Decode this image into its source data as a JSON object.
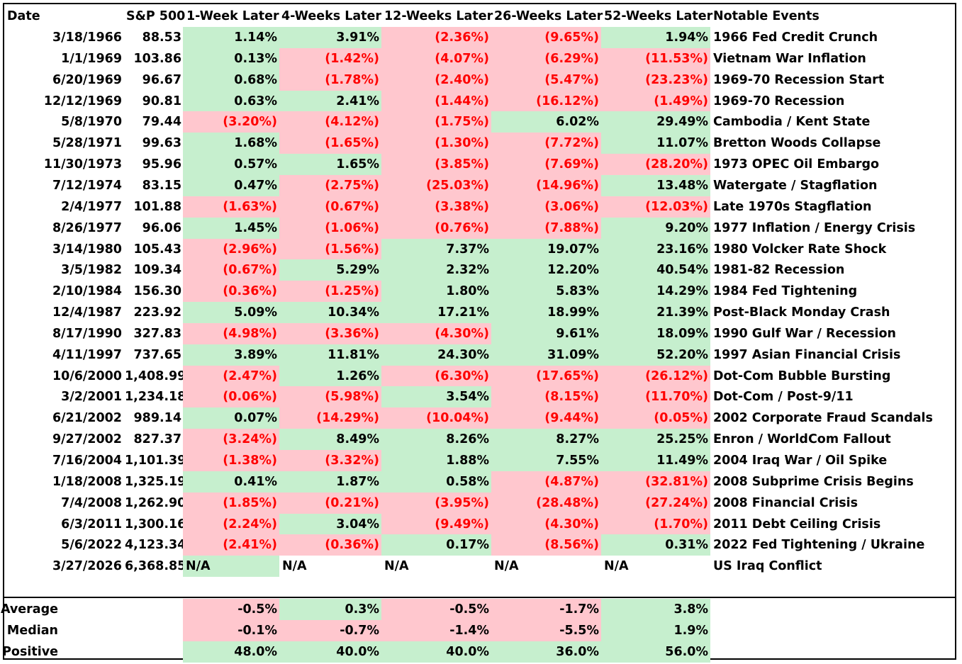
{
  "headers": {
    "date": "Date",
    "sp500": "S&P 500",
    "w1": "1-Week Later",
    "w4": "4-Weeks Later",
    "w12": "12-Weeks Later",
    "w26": "26-Weeks Later",
    "w52": "52-Weeks Later",
    "events": "Notable Events"
  },
  "rows": [
    {
      "date": "3/18/1966",
      "sp": "88.53",
      "w1": "1.14%",
      "w4": "3.91%",
      "w12": "(2.36%)",
      "w26": "(9.65%)",
      "w52": "1.94%",
      "ev": "1966 Fed Credit Crunch"
    },
    {
      "date": "1/1/1969",
      "sp": "103.86",
      "w1": "0.13%",
      "w4": "(1.42%)",
      "w12": "(4.07%)",
      "w26": "(6.29%)",
      "w52": "(11.53%)",
      "ev": "Vietnam War Inflation"
    },
    {
      "date": "6/20/1969",
      "sp": "96.67",
      "w1": "0.68%",
      "w4": "(1.78%)",
      "w12": "(2.40%)",
      "w26": "(5.47%)",
      "w52": "(23.23%)",
      "ev": "1969-70 Recession Start"
    },
    {
      "date": "12/12/1969",
      "sp": "90.81",
      "w1": "0.63%",
      "w4": "2.41%",
      "w12": "(1.44%)",
      "w26": "(16.12%)",
      "w52": "(1.49%)",
      "ev": "1969-70 Recession"
    },
    {
      "date": "5/8/1970",
      "sp": "79.44",
      "w1": "(3.20%)",
      "w4": "(4.12%)",
      "w12": "(1.75%)",
      "w26": "6.02%",
      "w52": "29.49%",
      "ev": "Cambodia / Kent State"
    },
    {
      "date": "5/28/1971",
      "sp": "99.63",
      "w1": "1.68%",
      "w4": "(1.65%)",
      "w12": "(1.30%)",
      "w26": "(7.72%)",
      "w52": "11.07%",
      "ev": "Bretton Woods Collapse"
    },
    {
      "date": "11/30/1973",
      "sp": "95.96",
      "w1": "0.57%",
      "w4": "1.65%",
      "w12": "(3.85%)",
      "w26": "(7.69%)",
      "w52": "(28.20%)",
      "ev": "1973 OPEC Oil Embargo"
    },
    {
      "date": "7/12/1974",
      "sp": "83.15",
      "w1": "0.47%",
      "w4": "(2.75%)",
      "w12": "(25.03%)",
      "w26": "(14.96%)",
      "w52": "13.48%",
      "ev": "Watergate / Stagflation"
    },
    {
      "date": "2/4/1977",
      "sp": "101.88",
      "w1": "(1.63%)",
      "w4": "(0.67%)",
      "w12": "(3.38%)",
      "w26": "(3.06%)",
      "w52": "(12.03%)",
      "ev": "Late 1970s Stagflation"
    },
    {
      "date": "8/26/1977",
      "sp": "96.06",
      "w1": "1.45%",
      "w4": "(1.06%)",
      "w12": "(0.76%)",
      "w26": "(7.88%)",
      "w52": "9.20%",
      "ev": "1977 Inflation / Energy Crisis"
    },
    {
      "date": "3/14/1980",
      "sp": "105.43",
      "w1": "(2.96%)",
      "w4": "(1.56%)",
      "w12": "7.37%",
      "w26": "19.07%",
      "w52": "23.16%",
      "ev": "1980 Volcker Rate Shock"
    },
    {
      "date": "3/5/1982",
      "sp": "109.34",
      "w1": "(0.67%)",
      "w4": "5.29%",
      "w12": "2.32%",
      "w26": "12.20%",
      "w52": "40.54%",
      "ev": "1981-82 Recession"
    },
    {
      "date": "2/10/1984",
      "sp": "156.30",
      "w1": "(0.36%)",
      "w4": "(1.25%)",
      "w12": "1.80%",
      "w26": "5.83%",
      "w52": "14.29%",
      "ev": "1984 Fed Tightening"
    },
    {
      "date": "12/4/1987",
      "sp": "223.92",
      "w1": "5.09%",
      "w4": "10.34%",
      "w12": "17.21%",
      "w26": "18.99%",
      "w52": "21.39%",
      "ev": "Post-Black Monday Crash"
    },
    {
      "date": "8/17/1990",
      "sp": "327.83",
      "w1": "(4.98%)",
      "w4": "(3.36%)",
      "w12": "(4.30%)",
      "w26": "9.61%",
      "w52": "18.09%",
      "ev": "1990 Gulf War / Recession"
    },
    {
      "date": "4/11/1997",
      "sp": "737.65",
      "w1": "3.89%",
      "w4": "11.81%",
      "w12": "24.30%",
      "w26": "31.09%",
      "w52": "52.20%",
      "ev": "1997 Asian Financial Crisis"
    },
    {
      "date": "10/6/2000",
      "sp": "1,408.99",
      "w1": "(2.47%)",
      "w4": "1.26%",
      "w12": "(6.30%)",
      "w26": "(17.65%)",
      "w52": "(26.12%)",
      "ev": "Dot-Com Bubble Bursting"
    },
    {
      "date": "3/2/2001",
      "sp": "1,234.18",
      "w1": "(0.06%)",
      "w4": "(5.98%)",
      "w12": "3.54%",
      "w26": "(8.15%)",
      "w52": "(11.70%)",
      "ev": "Dot-Com / Post-9/11"
    },
    {
      "date": "6/21/2002",
      "sp": "989.14",
      "w1": "0.07%",
      "w4": "(14.29%)",
      "w12": "(10.04%)",
      "w26": "(9.44%)",
      "w52": "(0.05%)",
      "ev": "2002 Corporate Fraud Scandals"
    },
    {
      "date": "9/27/2002",
      "sp": "827.37",
      "w1": "(3.24%)",
      "w4": "8.49%",
      "w12": "8.26%",
      "w26": "8.27%",
      "w52": "25.25%",
      "ev": "Enron / WorldCom Fallout"
    },
    {
      "date": "7/16/2004",
      "sp": "1,101.39",
      "w1": "(1.38%)",
      "w4": "(3.32%)",
      "w12": "1.88%",
      "w26": "7.55%",
      "w52": "11.49%",
      "ev": "2004 Iraq War / Oil Spike"
    },
    {
      "date": "1/18/2008",
      "sp": "1,325.19",
      "w1": "0.41%",
      "w4": "1.87%",
      "w12": "0.58%",
      "w26": "(4.87%)",
      "w52": "(32.81%)",
      "ev": "2008 Subprime Crisis Begins"
    },
    {
      "date": "7/4/2008",
      "sp": "1,262.90",
      "w1": "(1.85%)",
      "w4": "(0.21%)",
      "w12": "(3.95%)",
      "w26": "(28.48%)",
      "w52": "(27.24%)",
      "ev": "2008 Financial Crisis"
    },
    {
      "date": "6/3/2011",
      "sp": "1,300.16",
      "w1": "(2.24%)",
      "w4": "3.04%",
      "w12": "(9.49%)",
      "w26": "(4.30%)",
      "w52": "(1.70%)",
      "ev": "2011 Debt Ceiling Crisis"
    },
    {
      "date": "5/6/2022",
      "sp": "4,123.34",
      "w1": "(2.41%)",
      "w4": "(0.36%)",
      "w12": "0.17%",
      "w26": "(8.56%)",
      "w52": "0.31%",
      "ev": "2022 Fed Tightening / Ukraine"
    },
    {
      "date": "3/27/2026",
      "sp": "6,368.85",
      "w1": "N/A",
      "w4": "N/A",
      "w12": "N/A",
      "w26": "N/A",
      "w52": "N/A",
      "ev": "US Iraq Conflict"
    }
  ],
  "summary": [
    {
      "label": "Average",
      "w1": "-0.5%",
      "w4": "0.3%",
      "w12": "-0.5%",
      "w26": "-1.7%",
      "w52": "3.8%"
    },
    {
      "label": "Median",
      "w1": "-0.1%",
      "w4": "-0.7%",
      "w12": "-1.4%",
      "w26": "-5.5%",
      "w52": "1.9%"
    },
    {
      "label": "% Positive",
      "w1": "48.0%",
      "w4": "40.0%",
      "w12": "40.0%",
      "w26": "36.0%",
      "w52": "56.0%"
    }
  ],
  "colors": {
    "positive_fill": "#c6efce",
    "negative_fill": "#ffc7ce",
    "negative_text": "#ff0000"
  }
}
